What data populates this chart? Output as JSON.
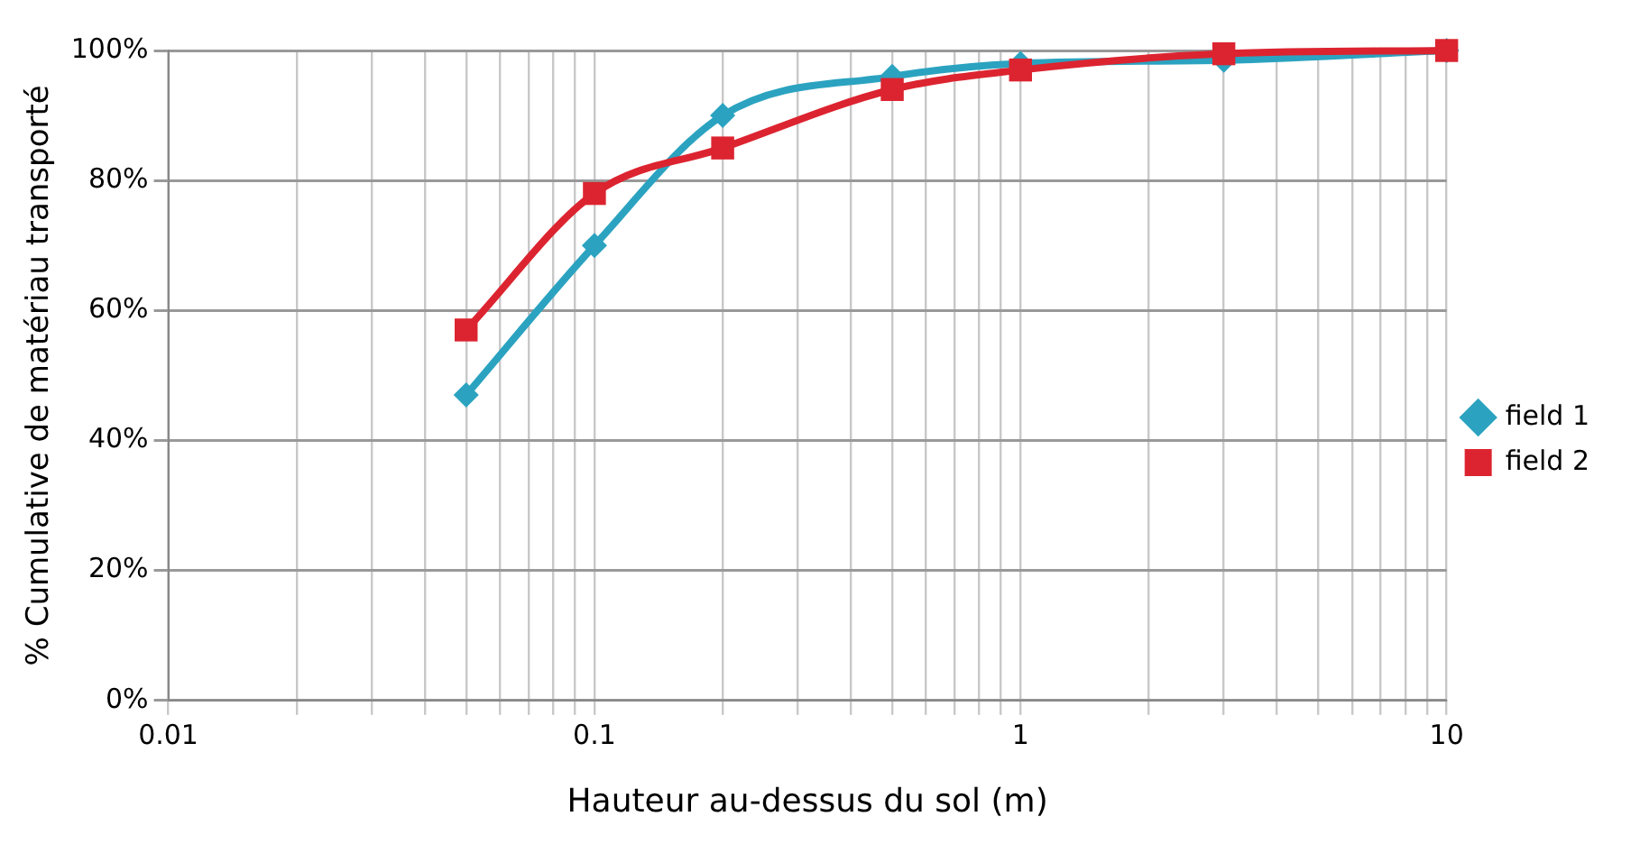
{
  "chart_data": {
    "type": "line",
    "xlabel": "Hauteur au-dessus du sol (m)",
    "ylabel": "% Cumulative de matériau transporté",
    "x": [
      0.05,
      0.1,
      0.2,
      0.5,
      1,
      3,
      10
    ],
    "series": [
      {
        "name": "field 1",
        "color": "#2ba3c0",
        "marker": "diamond",
        "values": [
          47,
          70,
          90,
          96,
          98,
          98.5,
          100
        ]
      },
      {
        "name": "field 2",
        "color": "#dc2430",
        "marker": "square",
        "values": [
          57,
          78,
          85,
          94,
          97,
          99.5,
          100
        ]
      }
    ],
    "log": "x",
    "xlim": [
      0.01,
      10
    ],
    "ylim": [
      0,
      100
    ],
    "xticks": [
      0.01,
      {
        "value": 0.02,
        "label": null
      },
      {
        "value": 0.03,
        "label": null
      },
      {
        "value": 0.04,
        "label": null
      },
      {
        "value": 0.05,
        "label": null
      },
      {
        "value": 0.06,
        "label": null
      },
      {
        "value": 0.07,
        "label": null
      },
      {
        "value": 0.08,
        "label": null
      },
      {
        "value": 0.09,
        "label": null
      },
      0.1,
      {
        "value": 0.2,
        "label": null
      },
      {
        "value": 0.3,
        "label": null
      },
      {
        "value": 0.4,
        "label": null
      },
      {
        "value": 0.5,
        "label": null
      },
      {
        "value": 0.6,
        "label": null
      },
      {
        "value": 0.7,
        "label": null
      },
      {
        "value": 0.8,
        "label": null
      },
      {
        "value": 0.9,
        "label": null
      },
      1,
      {
        "value": 2,
        "label": null
      },
      {
        "value": 3,
        "label": null
      },
      {
        "value": 4,
        "label": null
      },
      {
        "value": 5,
        "label": null
      },
      {
        "value": 6,
        "label": null
      },
      {
        "value": 7,
        "label": null
      },
      {
        "value": 8,
        "label": null
      },
      {
        "value": 9,
        "label": null
      },
      10
    ],
    "yticks": [
      {
        "value": 0,
        "label": "0%"
      },
      {
        "value": 20,
        "label": "20%"
      },
      {
        "value": 40,
        "label": "40%"
      },
      {
        "value": 60,
        "label": "60%"
      },
      {
        "value": 80,
        "label": "80%"
      },
      {
        "value": 100,
        "label": "100%"
      }
    ],
    "grid": true,
    "legend": "right",
    "line_style": "solid"
  }
}
